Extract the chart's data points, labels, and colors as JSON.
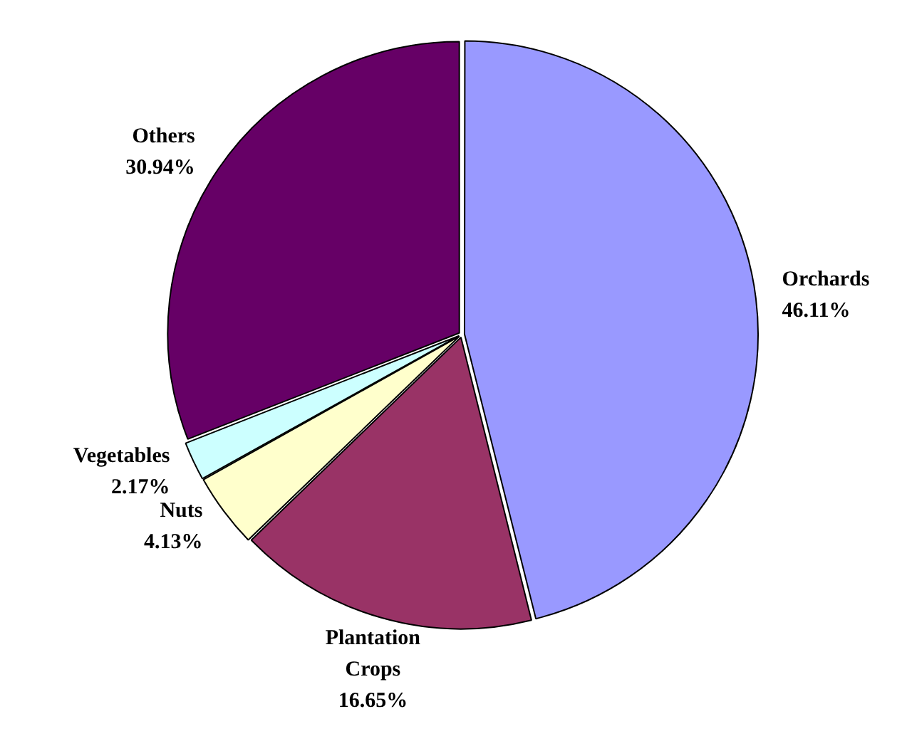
{
  "chart_data": {
    "type": "pie",
    "categories": [
      "Orchards",
      "Plantation Crops",
      "Nuts",
      "Vegetables",
      "Others"
    ],
    "values": [
      46.11,
      16.65,
      4.13,
      2.17,
      30.94
    ],
    "colors": [
      "#9999ff",
      "#993366",
      "#ffffcc",
      "#ccffff",
      "#660066"
    ],
    "value_labels": [
      "46.11%",
      "16.65%",
      "4.13%",
      "2.17%",
      "30.94%"
    ],
    "legend": false
  }
}
